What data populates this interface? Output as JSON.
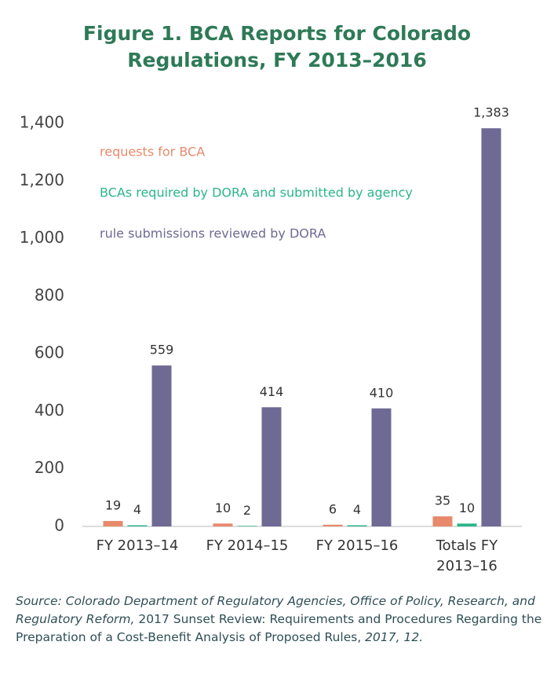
{
  "chart_data": {
    "type": "bar",
    "title_lines": [
      "Figure 1. BCA Reports for Colorado",
      "Regulations, FY 2013–2016"
    ],
    "categories": [
      "FY 2013–14",
      "FY 2014–15",
      "FY 2015–16",
      "Totals FY 2013–16"
    ],
    "series": [
      {
        "name": "requests for BCA",
        "color": "#e8896b",
        "values": [
          19,
          10,
          6,
          35
        ]
      },
      {
        "name": "BCAs required by DORA and submitted by agency",
        "color": "#2bb58a",
        "values": [
          4,
          2,
          4,
          10
        ]
      },
      {
        "name": "rule submissions reviewed by DORA",
        "color": "#6e6a94",
        "values": [
          559,
          414,
          410,
          1383
        ],
        "value_labels": [
          "559",
          "414",
          "410",
          "1,383"
        ]
      }
    ],
    "ylim": [
      0,
      1400
    ],
    "yticks": [
      0,
      200,
      400,
      600,
      800,
      {
        "value": 1000,
        "label": "1,000"
      },
      {
        "value": 1200,
        "label": "1,200"
      },
      {
        "value": 1400,
        "label": "1,400"
      }
    ],
    "grid": false,
    "source": [
      "Source: Colorado Department of Regulatory Agencies, Office of Policy, Research, and Regulatory Reform,",
      " 2017 Sunset Review: Requirements and Procedures Regarding the Preparation of a Cost-Benefit Analysis of Proposed Rules,",
      " 2017, 12."
    ]
  }
}
